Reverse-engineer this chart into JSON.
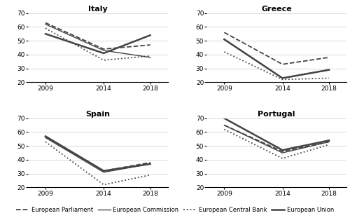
{
  "years": [
    2009,
    2014,
    2018
  ],
  "italy": {
    "title": "Italy",
    "european_parliament": [
      63,
      44,
      47
    ],
    "european_commission": [
      62,
      43,
      38
    ],
    "european_central_bank": [
      59,
      36,
      39
    ],
    "european_union": [
      55,
      41,
      54
    ]
  },
  "greece": {
    "title": "Greece",
    "european_parliament": [
      56,
      33,
      38
    ],
    "european_commission": [
      51,
      23,
      29
    ],
    "european_central_bank": [
      42,
      22,
      23
    ],
    "european_union": [
      51,
      23,
      29
    ]
  },
  "spain": {
    "title": "Spain",
    "european_parliament": [
      57,
      32,
      38
    ],
    "european_commission": [
      56,
      31,
      37
    ],
    "european_central_bank": [
      53,
      22,
      29
    ],
    "european_union": [
      57,
      32,
      37
    ]
  },
  "portugal": {
    "title": "Portugal",
    "european_parliament": [
      65,
      46,
      53
    ],
    "european_commission": [
      65,
      45,
      53
    ],
    "european_central_bank": [
      62,
      41,
      51
    ],
    "european_union": [
      70,
      47,
      54
    ]
  },
  "legend": {
    "european_parliament": "European Parliament",
    "european_commission": "European Commission",
    "european_central_bank": "European Central Bank",
    "european_union": "European Union"
  },
  "ylim": [
    20,
    70
  ],
  "yticks": [
    20,
    30,
    40,
    50,
    60,
    70
  ],
  "line_color": "#444444",
  "background_color": "#ffffff"
}
